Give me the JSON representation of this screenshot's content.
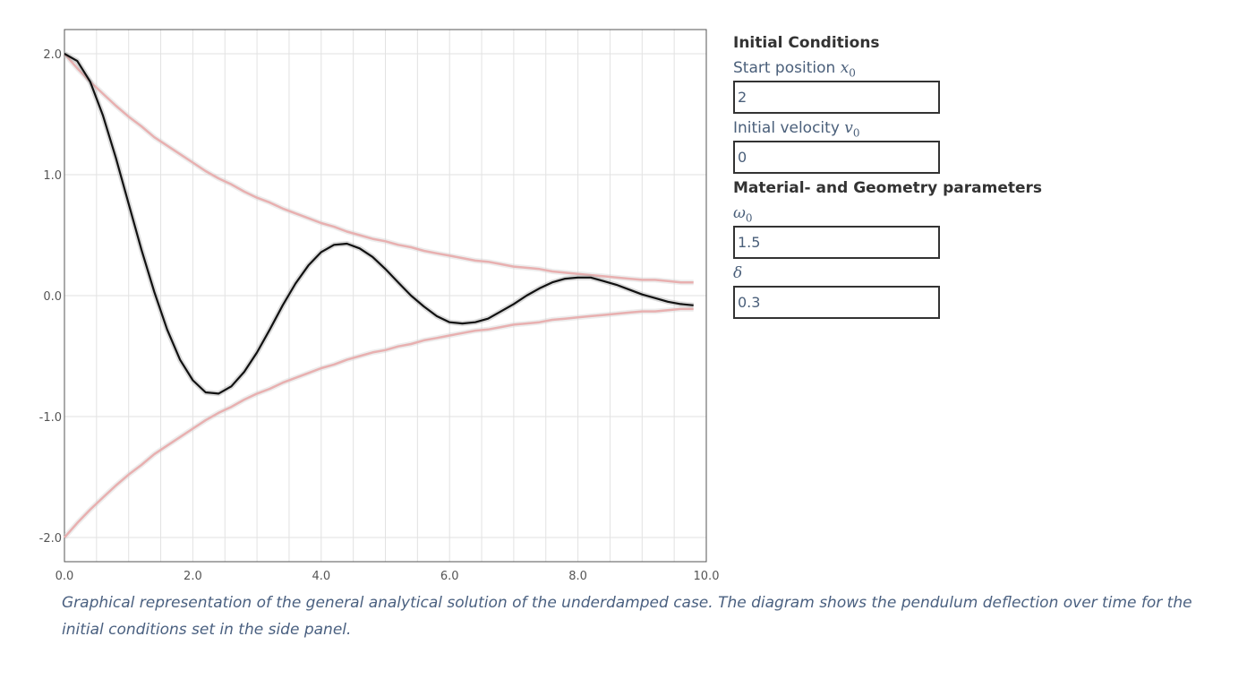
{
  "chart_data": {
    "type": "line",
    "x": [
      0.0,
      0.2,
      0.4,
      0.6,
      0.8,
      1.0,
      1.2,
      1.4,
      1.6,
      1.8,
      2.0,
      2.2,
      2.4,
      2.6,
      2.8,
      3.0,
      3.2,
      3.4,
      3.6,
      3.8,
      4.0,
      4.2,
      4.4,
      4.6,
      4.8,
      5.0,
      5.2,
      5.4,
      5.6,
      5.8,
      6.0,
      6.2,
      6.4,
      6.6,
      6.8,
      7.0,
      7.2,
      7.4,
      7.6,
      7.8,
      8.0,
      8.2,
      8.4,
      8.6,
      8.8,
      9.0,
      9.2,
      9.4,
      9.6,
      9.8
    ],
    "series": [
      {
        "values": [
          2.0,
          1.94,
          1.77,
          1.49,
          1.14,
          0.76,
          0.38,
          0.03,
          -0.28,
          -0.53,
          -0.7,
          -0.8,
          -0.81,
          -0.75,
          -0.63,
          -0.47,
          -0.28,
          -0.08,
          0.1,
          0.25,
          0.36,
          0.42,
          0.43,
          0.39,
          0.32,
          0.22,
          0.11,
          0.0,
          -0.09,
          -0.17,
          -0.22,
          -0.23,
          -0.22,
          -0.19,
          -0.13,
          -0.07,
          0.0,
          0.06,
          0.11,
          0.14,
          0.15,
          0.15,
          0.12,
          0.09,
          0.05,
          0.01,
          -0.02,
          -0.05,
          -0.07,
          -0.08
        ],
        "color": "#111111"
      },
      {
        "values": [
          2.0,
          1.88,
          1.77,
          1.67,
          1.57,
          1.48,
          1.4,
          1.31,
          1.24,
          1.17,
          1.1,
          1.03,
          0.97,
          0.92,
          0.86,
          0.81,
          0.77,
          0.72,
          0.68,
          0.64,
          0.6,
          0.57,
          0.53,
          0.5,
          0.47,
          0.45,
          0.42,
          0.4,
          0.37,
          0.35,
          0.33,
          0.31,
          0.29,
          0.28,
          0.26,
          0.24,
          0.23,
          0.22,
          0.2,
          0.19,
          0.18,
          0.17,
          0.16,
          0.15,
          0.14,
          0.13,
          0.13,
          0.12,
          0.11,
          0.11
        ],
        "color": "#e8b0b0"
      },
      {
        "values": [
          -2.0,
          -1.88,
          -1.77,
          -1.67,
          -1.57,
          -1.48,
          -1.4,
          -1.31,
          -1.24,
          -1.17,
          -1.1,
          -1.03,
          -0.97,
          -0.92,
          -0.86,
          -0.81,
          -0.77,
          -0.72,
          -0.68,
          -0.64,
          -0.6,
          -0.57,
          -0.53,
          -0.5,
          -0.47,
          -0.45,
          -0.42,
          -0.4,
          -0.37,
          -0.35,
          -0.33,
          -0.31,
          -0.29,
          -0.28,
          -0.26,
          -0.24,
          -0.23,
          -0.22,
          -0.2,
          -0.19,
          -0.18,
          -0.17,
          -0.16,
          -0.15,
          -0.14,
          -0.13,
          -0.13,
          -0.12,
          -0.11,
          -0.11
        ],
        "color": "#e8b0b0"
      }
    ],
    "xlim": [
      0,
      10
    ],
    "ylim": [
      -2.2,
      2.2
    ],
    "x_ticks": [
      "0.0",
      "2.0",
      "4.0",
      "6.0",
      "8.0",
      "10.0"
    ],
    "y_ticks": [
      "2.0",
      "1.0",
      "0.0",
      "-1.0",
      "-2.0"
    ],
    "grid": true
  },
  "panel": {
    "initial_heading": "Initial Conditions",
    "start_position_label": "Start position",
    "start_position_symbol": "x",
    "start_position_sub": "0",
    "start_position_value": "2",
    "initial_velocity_label": "Initial velocity",
    "initial_velocity_symbol": "v",
    "initial_velocity_sub": "0",
    "initial_velocity_value": "0",
    "material_heading": "Material- and Geometry parameters",
    "omega_symbol": "ω",
    "omega_sub": "0",
    "omega_value": "1.5",
    "delta_symbol": "δ",
    "delta_value": "0.3"
  },
  "caption": "Graphical representation of the general analytical solution of the underdamped case. The diagram shows the pendulum deflection over time for the initial conditions set in the side panel."
}
